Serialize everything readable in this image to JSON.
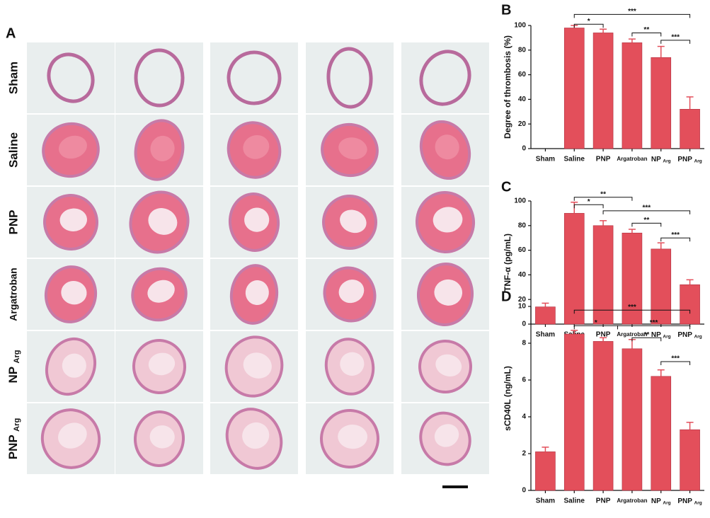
{
  "panel_a": {
    "label": "A",
    "row_labels": [
      "Sham",
      "Saline",
      "PNP",
      "Argatroban",
      "NP Arg",
      "PNP Arg"
    ]
  },
  "chart_data": [
    {
      "type": "bar",
      "panel": "B",
      "ylabel": "Degree of thrombosis (%)",
      "categories": [
        "Sham",
        "Saline",
        "PNP",
        "Argatroban",
        "NP Arg",
        "PNP Arg"
      ],
      "values": [
        0,
        98,
        94,
        86,
        74,
        32
      ],
      "errors": [
        0,
        2,
        3,
        3,
        9,
        10
      ],
      "color": "#e34f5b",
      "ylim": [
        0,
        100
      ],
      "yticks": [
        0,
        20,
        40,
        60,
        80,
        100
      ],
      "annotations": [
        "*",
        "***",
        "**",
        "***"
      ]
    },
    {
      "type": "bar",
      "panel": "C",
      "ylabel": "TNF-α (pg/mL)",
      "categories": [
        "Sham",
        "Saline",
        "PNP",
        "Argatroban",
        "NP Arg",
        "PNP Arg"
      ],
      "values": [
        14,
        90,
        80,
        74,
        61,
        32
      ],
      "errors": [
        3,
        9,
        4,
        3,
        5,
        4
      ],
      "color": "#e34f5b",
      "ylim": [
        0,
        100
      ],
      "yticks": [
        0,
        20,
        40,
        60,
        80,
        100
      ],
      "annotations": [
        "*",
        "**",
        "***",
        "**",
        "***"
      ]
    },
    {
      "type": "bar",
      "panel": "D",
      "ylabel": "sCD40L (ng/mL)",
      "categories": [
        "Sham",
        "Saline",
        "PNP",
        "Argatroban",
        "NP Arg",
        "PNP Arg"
      ],
      "values": [
        2.1,
        8.5,
        8.1,
        7.7,
        6.2,
        3.3
      ],
      "errors": [
        0.25,
        0.2,
        0.2,
        0.5,
        0.35,
        0.4
      ],
      "color": "#e34f5b",
      "ylim": [
        0,
        10
      ],
      "yticks": [
        0,
        2,
        4,
        6,
        8,
        10
      ],
      "annotations": [
        "***",
        "*",
        "***",
        "**",
        "***"
      ]
    }
  ]
}
